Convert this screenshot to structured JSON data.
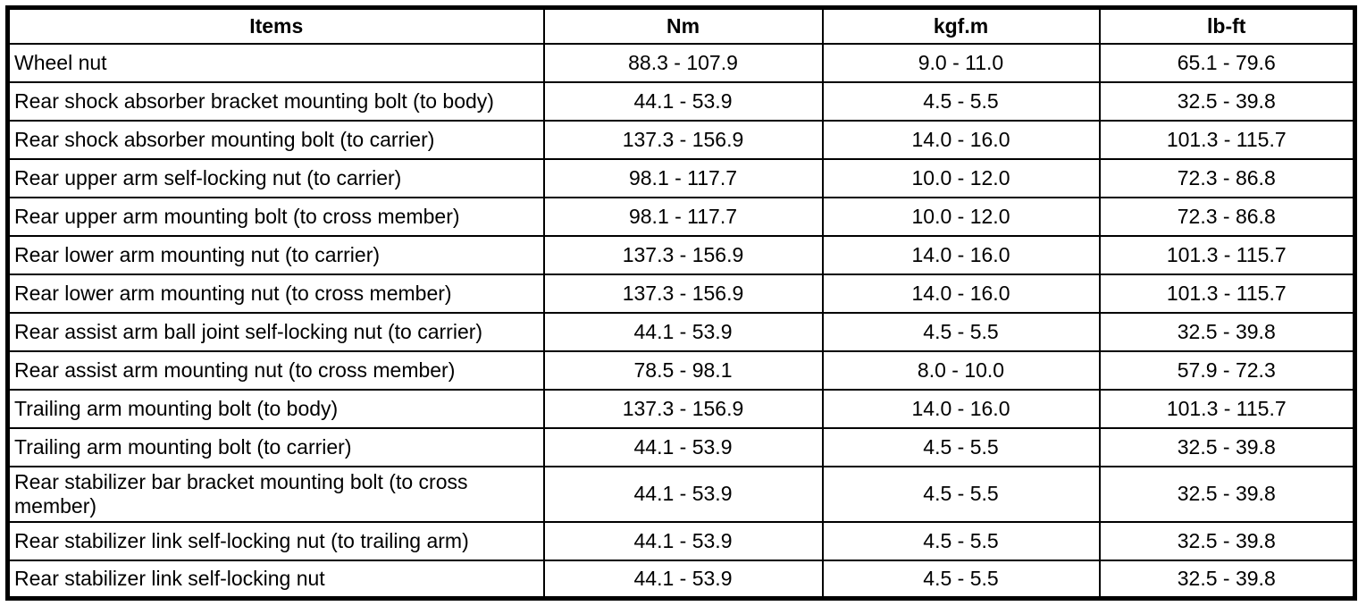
{
  "colors": {
    "background": "#ffffff",
    "border": "#000000",
    "text": "#000000"
  },
  "table": {
    "columns": {
      "items": "Items",
      "nm": "Nm",
      "kgfm": "kgf.m",
      "lbft": "lb-ft"
    },
    "rows": [
      {
        "item": "Wheel nut",
        "nm": "88.3 - 107.9",
        "kgfm": "9.0 - 11.0",
        "lbft": "65.1 - 79.6"
      },
      {
        "item": "Rear shock absorber bracket mounting bolt (to body)",
        "nm": "44.1 - 53.9",
        "kgfm": "4.5 - 5.5",
        "lbft": "32.5 - 39.8"
      },
      {
        "item": "Rear shock absorber mounting bolt (to carrier)",
        "nm": "137.3 - 156.9",
        "kgfm": "14.0 - 16.0",
        "lbft": "101.3 - 115.7"
      },
      {
        "item": "Rear upper arm self-locking nut (to carrier)",
        "nm": "98.1 - 117.7",
        "kgfm": "10.0 - 12.0",
        "lbft": "72.3 - 86.8"
      },
      {
        "item": "Rear upper arm mounting bolt (to cross member)",
        "nm": "98.1 - 117.7",
        "kgfm": "10.0 - 12.0",
        "lbft": "72.3 - 86.8"
      },
      {
        "item": "Rear lower arm mounting nut (to carrier)",
        "nm": "137.3 - 156.9",
        "kgfm": "14.0 - 16.0",
        "lbft": "101.3 - 115.7"
      },
      {
        "item": "Rear lower arm mounting nut (to cross member)",
        "nm": "137.3 - 156.9",
        "kgfm": "14.0 - 16.0",
        "lbft": "101.3 - 115.7"
      },
      {
        "item": "Rear assist arm ball joint self-locking nut (to carrier)",
        "nm": "44.1 - 53.9",
        "kgfm": "4.5 - 5.5",
        "lbft": "32.5 - 39.8"
      },
      {
        "item": "Rear assist arm mounting nut (to cross member)",
        "nm": "78.5 - 98.1",
        "kgfm": "8.0 - 10.0",
        "lbft": "57.9 - 72.3"
      },
      {
        "item": "Trailing arm mounting bolt (to body)",
        "nm": "137.3 - 156.9",
        "kgfm": "14.0 - 16.0",
        "lbft": "101.3 - 115.7"
      },
      {
        "item": "Trailing arm mounting bolt (to carrier)",
        "nm": "44.1 - 53.9",
        "kgfm": "4.5 - 5.5",
        "lbft": "32.5 - 39.8"
      },
      {
        "item": "Rear stabilizer bar bracket mounting bolt (to cross member)",
        "nm": "44.1 - 53.9",
        "kgfm": "4.5 - 5.5",
        "lbft": "32.5 - 39.8"
      },
      {
        "item": "Rear stabilizer link self-locking nut (to trailing arm)",
        "nm": "44.1 - 53.9",
        "kgfm": "4.5 - 5.5",
        "lbft": "32.5 - 39.8"
      },
      {
        "item": "Rear stabilizer link self-locking nut",
        "nm": "44.1 - 53.9",
        "kgfm": "4.5 - 5.5",
        "lbft": "32.5 - 39.8"
      }
    ]
  }
}
